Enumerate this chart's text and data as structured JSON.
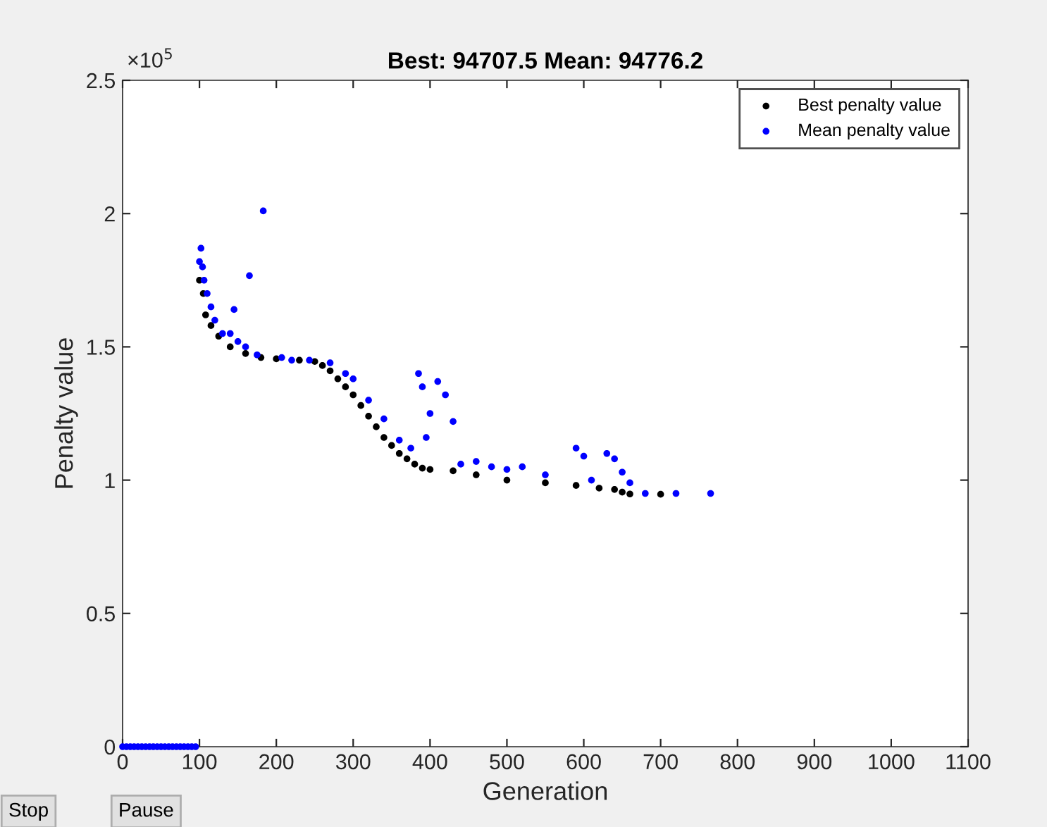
{
  "chart_data": {
    "type": "scatter",
    "title": "Best: 94707.5 Mean: 94776.2",
    "xlabel": "Generation",
    "ylabel": "Penalty value",
    "annotations": [
      "×10$^{5}$",
      "Stop",
      "Pause"
    ],
    "xlim": [
      0,
      1100
    ],
    "xticks": [
      0,
      100,
      200,
      300,
      400,
      500,
      600,
      700,
      800,
      900,
      1000,
      1100
    ],
    "ylim": [
      0,
      2.5
    ],
    "yticks": [
      0,
      0.5,
      1,
      1.5,
      2,
      2.5
    ],
    "grid": false,
    "legend": "top right",
    "marker": "circle",
    "series": [
      {
        "name": "Best penalty value",
        "color": "#000000",
        "x": [
          100,
          105,
          108,
          115,
          125,
          140,
          160,
          180,
          200,
          230,
          250,
          260,
          270,
          280,
          290,
          300,
          310,
          320,
          330,
          340,
          350,
          360,
          370,
          380,
          390,
          400,
          430,
          460,
          500,
          550,
          590,
          620,
          640,
          650,
          660,
          700
        ],
        "values": [
          1.75,
          1.7,
          1.62,
          1.58,
          1.54,
          1.5,
          1.475,
          1.46,
          1.455,
          1.45,
          1.445,
          1.43,
          1.41,
          1.38,
          1.35,
          1.32,
          1.28,
          1.24,
          1.2,
          1.16,
          1.13,
          1.1,
          1.08,
          1.06,
          1.045,
          1.04,
          1.035,
          1.02,
          1.0,
          0.99,
          0.98,
          0.97,
          0.965,
          0.955,
          0.948,
          0.947
        ]
      },
      {
        "name": "Mean penalty value",
        "color": "#0000ff",
        "x": [
          0,
          5,
          10,
          15,
          20,
          25,
          30,
          35,
          40,
          45,
          50,
          55,
          60,
          65,
          70,
          75,
          80,
          85,
          90,
          95,
          100,
          102,
          104,
          106,
          110,
          115,
          120,
          130,
          140,
          145,
          150,
          160,
          165,
          175,
          183,
          207,
          220,
          243,
          270,
          290,
          300,
          320,
          340,
          360,
          375,
          385,
          390,
          395,
          400,
          410,
          420,
          430,
          440,
          460,
          480,
          500,
          520,
          550,
          590,
          600,
          610,
          630,
          640,
          650,
          660,
          680,
          720,
          765
        ],
        "values": [
          0,
          0,
          0,
          0,
          0,
          0,
          0,
          0,
          0,
          0,
          0,
          0,
          0,
          0,
          0,
          0,
          0,
          0,
          0,
          0,
          1.82,
          1.87,
          1.8,
          1.75,
          1.7,
          1.65,
          1.6,
          1.55,
          1.55,
          1.64,
          1.52,
          1.5,
          1.767,
          1.47,
          2.01,
          1.46,
          1.45,
          1.45,
          1.44,
          1.4,
          1.38,
          1.3,
          1.23,
          1.15,
          1.12,
          1.4,
          1.35,
          1.16,
          1.25,
          1.37,
          1.32,
          1.22,
          1.06,
          1.07,
          1.05,
          1.04,
          1.05,
          1.02,
          1.12,
          1.09,
          1.0,
          1.1,
          1.08,
          1.03,
          0.99,
          0.95,
          0.95,
          0.95
        ]
      }
    ]
  }
}
